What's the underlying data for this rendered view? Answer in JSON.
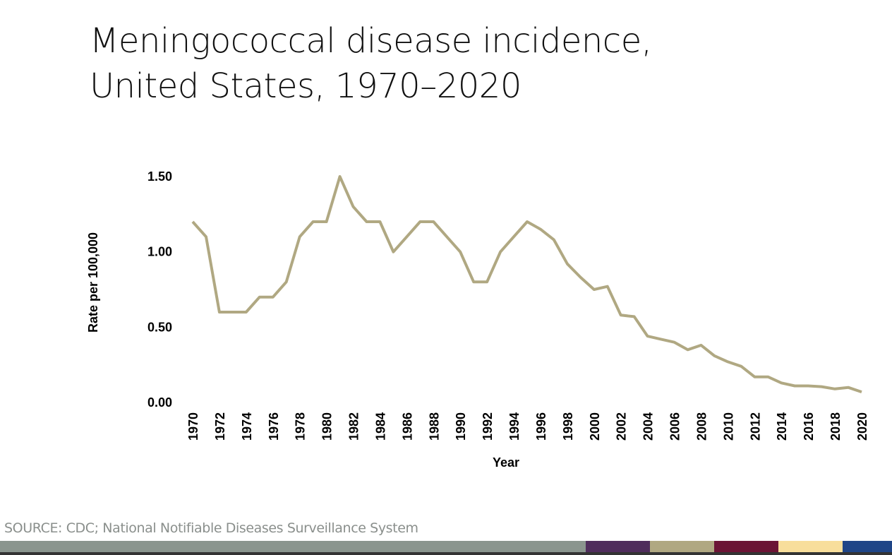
{
  "title_lines": [
    "Meningococcal disease incidence,",
    "United States, 1970–2020"
  ],
  "source": "SOURCE: CDC; National Notifiable Diseases Surveillance System",
  "footer_bar_colors": [
    "#8a958e",
    "#4f2d5c",
    "#b0a882",
    "#6b1435",
    "#f8de9b",
    "#1f4587"
  ],
  "chart_data": {
    "type": "line",
    "title": "Meningococcal disease incidence, United States, 1970–2020",
    "xlabel": "Year",
    "ylabel": "Rate per 100,000",
    "ylim": [
      0,
      1.5
    ],
    "xlim": [
      1970,
      2020
    ],
    "grid": false,
    "legend": "none",
    "line_color": "#b0a882",
    "y_ticks": [
      "0.00",
      "0.50",
      "1.00",
      "1.50"
    ],
    "y_tick_values": [
      0,
      0.5,
      1.0,
      1.5
    ],
    "x_ticks": [
      "1970",
      "1972",
      "1974",
      "1976",
      "1978",
      "1980",
      "1982",
      "1984",
      "1986",
      "1988",
      "1990",
      "1992",
      "1994",
      "1996",
      "1998",
      "2000",
      "2002",
      "2004",
      "2006",
      "2008",
      "2010",
      "2012",
      "2014",
      "2016",
      "2018",
      "2020"
    ],
    "series": [
      {
        "name": "Rate per 100,000",
        "x": [
          1970,
          1971,
          1972,
          1973,
          1974,
          1975,
          1976,
          1977,
          1978,
          1979,
          1980,
          1981,
          1982,
          1983,
          1984,
          1985,
          1986,
          1987,
          1988,
          1989,
          1990,
          1991,
          1992,
          1993,
          1994,
          1995,
          1996,
          1997,
          1998,
          1999,
          2000,
          2001,
          2002,
          2003,
          2004,
          2005,
          2006,
          2007,
          2008,
          2009,
          2010,
          2011,
          2012,
          2013,
          2014,
          2015,
          2016,
          2017,
          2018,
          2019,
          2020
        ],
        "values": [
          1.2,
          1.1,
          0.6,
          0.6,
          0.6,
          0.7,
          0.7,
          0.8,
          1.1,
          1.2,
          1.2,
          1.5,
          1.3,
          1.2,
          1.2,
          1.0,
          1.1,
          1.2,
          1.2,
          1.1,
          1.0,
          0.8,
          0.8,
          1.0,
          1.1,
          1.2,
          1.15,
          1.08,
          0.92,
          0.83,
          0.75,
          0.77,
          0.58,
          0.57,
          0.44,
          0.42,
          0.4,
          0.35,
          0.38,
          0.31,
          0.27,
          0.24,
          0.17,
          0.17,
          0.13,
          0.11,
          0.11,
          0.105,
          0.09,
          0.1,
          0.07
        ]
      }
    ]
  }
}
